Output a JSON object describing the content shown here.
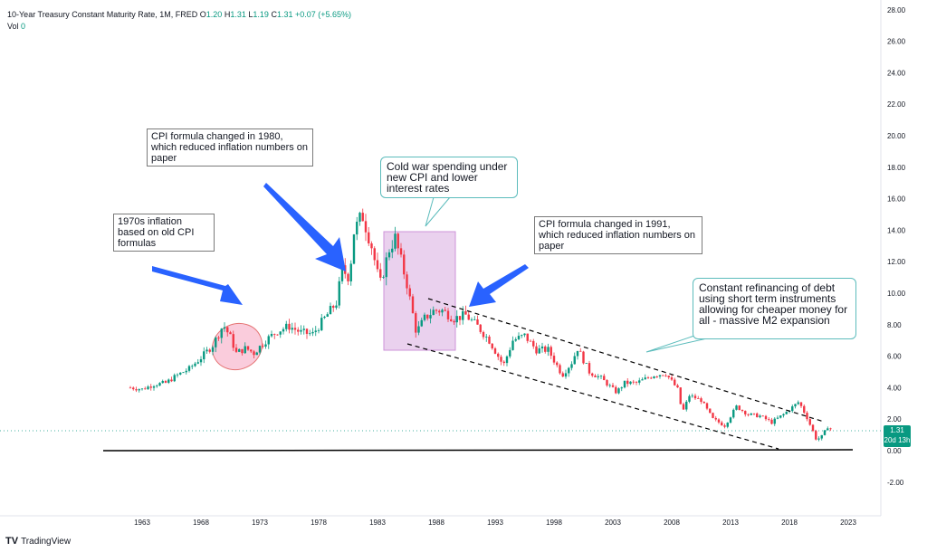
{
  "header": {
    "symbol_line": "10-Year Treasury Constant Maturity Rate, 1M, FRED",
    "o_label": "O",
    "o_value": "1.20",
    "h_label": "H",
    "h_value": "1.31",
    "l_label": "L",
    "l_value": "1.19",
    "c_label": "C",
    "c_value": "1.31",
    "change": "+0.07 (+5.65%)",
    "vol_label": "Vol",
    "vol_value": "0"
  },
  "last_price": {
    "value": "1.31",
    "countdown": "20d 13h"
  },
  "logo": {
    "mark": "TV",
    "text": "TradingView"
  },
  "colors": {
    "up": "#089981",
    "down": "#f23645",
    "arrow": "#2962ff",
    "shade": "#e1bee7",
    "ellipse": "#f8bbd0"
  },
  "annotations": [
    {
      "text": "CPI formula changed in 1980, which reduced inflation numbers on paper"
    },
    {
      "text": "1970s inflation based on old CPI formulas"
    },
    {
      "text": "Cold war spending under new CPI and lower interest rates"
    },
    {
      "text": "CPI formula changed in 1991, which reduced inflation numbers on paper"
    },
    {
      "text": "Constant refinancing of debt using short term instruments allowing for cheaper money for all - massive M2 expansion"
    }
  ],
  "chart_data": {
    "type": "candlestick",
    "title": "10-Year Treasury Constant Maturity Rate",
    "interval": "1M",
    "source": "FRED",
    "x_ticks": [
      "1963",
      "1968",
      "1973",
      "1978",
      "1983",
      "1988",
      "1993",
      "1998",
      "2003",
      "2008",
      "2013",
      "2018",
      "2023"
    ],
    "y_ticks": [
      "-2.00",
      "0.00",
      "2.00",
      "4.00",
      "6.00",
      "8.00",
      "10.00",
      "12.00",
      "14.00",
      "16.00",
      "18.00",
      "20.00",
      "22.00",
      "24.00",
      "26.00",
      "28.00"
    ],
    "ylim": [
      -4,
      28.5
    ],
    "xlim": [
      1959.3,
      2025.8
    ],
    "series": [
      {
        "name": "10-Year Treasury Constant Maturity Rate",
        "x": [
          1962.0,
          1963.0,
          1964.0,
          1965.0,
          1966.0,
          1967.0,
          1968.0,
          1969.0,
          1969.9,
          1970.5,
          1971.0,
          1971.8,
          1972.5,
          1973.5,
          1974.5,
          1975.5,
          1976.5,
          1977.5,
          1978.5,
          1979.5,
          1980.0,
          1980.6,
          1981.0,
          1981.7,
          1982.5,
          1983.2,
          1984.0,
          1984.5,
          1985.5,
          1986.3,
          1987.0,
          1987.8,
          1988.5,
          1989.5,
          1990.5,
          1991.5,
          1992.5,
          1993.7,
          1994.5,
          1995.5,
          1996.5,
          1997.5,
          1998.7,
          1999.5,
          2000.0,
          2001.0,
          2002.0,
          2003.3,
          2004.0,
          2005.0,
          2006.5,
          2007.5,
          2008.5,
          2008.9,
          2009.5,
          2010.5,
          2011.5,
          2012.5,
          2013.5,
          2014.5,
          2015.5,
          2016.5,
          2017.5,
          2018.8,
          2019.5,
          2020.3,
          2020.8,
          2021.3,
          2021.6
        ],
        "values": [
          4.0,
          3.9,
          4.2,
          4.3,
          4.8,
          5.2,
          5.9,
          6.7,
          8.0,
          7.2,
          6.2,
          6.5,
          6.2,
          7.0,
          7.6,
          7.9,
          7.5,
          7.4,
          8.4,
          9.4,
          11.5,
          11.0,
          13.9,
          15.0,
          13.0,
          10.5,
          12.8,
          13.5,
          10.6,
          7.5,
          8.4,
          8.9,
          8.9,
          8.4,
          8.6,
          7.9,
          7.0,
          5.4,
          7.0,
          7.3,
          6.4,
          6.4,
          4.8,
          5.6,
          6.5,
          5.0,
          4.6,
          3.7,
          4.3,
          4.3,
          4.8,
          4.9,
          3.9,
          2.4,
          3.5,
          3.2,
          2.0,
          1.6,
          2.8,
          2.3,
          2.2,
          1.8,
          2.3,
          3.1,
          2.1,
          0.7,
          0.9,
          1.6,
          1.31
        ]
      }
    ],
    "last_value": 1.31
  }
}
